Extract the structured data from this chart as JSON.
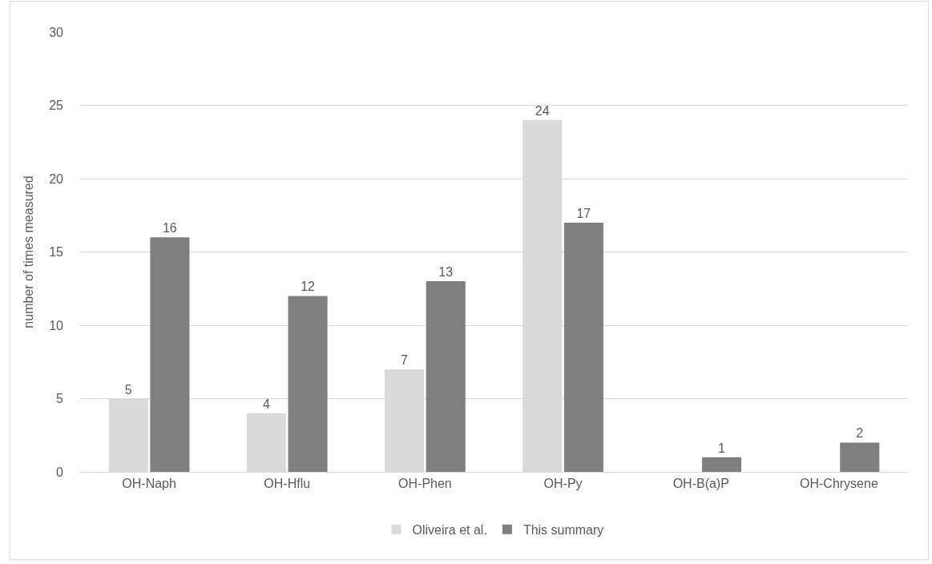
{
  "chart_data": {
    "type": "bar",
    "ylabel": "number of times measured",
    "categories": [
      "OH-Naph",
      "OH-Hflu",
      "OH-Phen",
      "OH-Py",
      "OH-B(a)P",
      "OH-Chrysene"
    ],
    "series": [
      {
        "name": "Oliveira et al.",
        "color": "#d9d9d9",
        "values": [
          5,
          4,
          7,
          24,
          null,
          null
        ]
      },
      {
        "name": "This summary",
        "color": "#7f7f7f",
        "values": [
          16,
          12,
          13,
          17,
          1,
          2
        ]
      }
    ],
    "ylim": [
      0,
      30
    ],
    "yticks": [
      0,
      5,
      10,
      15,
      20,
      25,
      30
    ],
    "grid": "y",
    "legend": "bottom",
    "data_labels": true
  }
}
